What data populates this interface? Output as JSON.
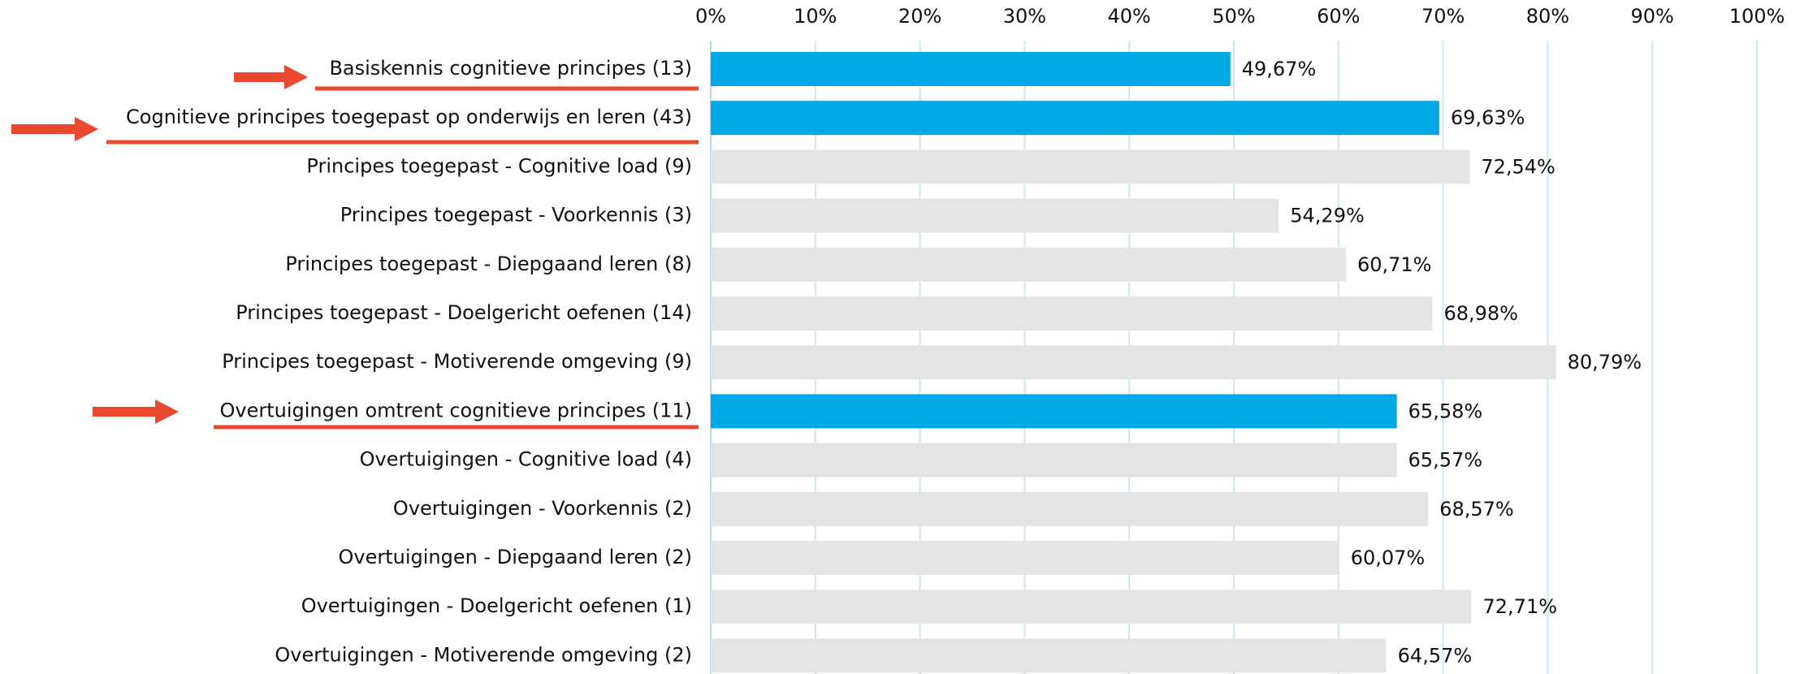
{
  "chart_data": {
    "type": "barh",
    "categories": [
      "Basiskennis cognitieve principes (13)",
      "Cognitieve principes toegepast op onderwijs en leren (43)",
      "Principes toegepast - Cognitive load (9)",
      "Principes toegepast - Voorkennis (3)",
      "Principes toegepast - Diepgaand leren (8)",
      "Principes toegepast - Doelgericht oefenen (14)",
      "Principes toegepast - Motiverende omgeving (9)",
      "Overtuigingen omtrent cognitieve principes (11)",
      "Overtuigingen - Cognitive load (4)",
      "Overtuigingen - Voorkennis (2)",
      "Overtuigingen - Diepgaand leren (2)",
      "Overtuigingen - Doelgericht oefenen (1)",
      "Overtuigingen - Motiverende omgeving (2)"
    ],
    "values": [
      49.67,
      69.63,
      72.54,
      54.29,
      60.71,
      68.98,
      80.79,
      65.58,
      65.57,
      68.57,
      60.07,
      72.71,
      64.57
    ],
    "value_labels": [
      "49,67%",
      "69,63%",
      "72,54%",
      "54,29%",
      "60,71%",
      "68,98%",
      "80,79%",
      "65,58%",
      "65,57%",
      "68,57%",
      "60,07%",
      "72,71%",
      "64,57%"
    ],
    "colors": [
      "#00a9e6",
      "#00a9e6",
      "#e4e4e4",
      "#e4e4e4",
      "#e4e4e4",
      "#e4e4e4",
      "#e4e4e4",
      "#00a9e6",
      "#e4e4e4",
      "#e4e4e4",
      "#e4e4e4",
      "#e4e4e4",
      "#e4e4e4"
    ],
    "xlim": [
      0,
      100
    ],
    "xticks": [
      {
        "value": 0,
        "label": "0%"
      },
      {
        "value": 10,
        "label": "10%"
      },
      {
        "value": 20,
        "label": "20%"
      },
      {
        "value": 30,
        "label": "30%"
      },
      {
        "value": 40,
        "label": "40%"
      },
      {
        "value": 50,
        "label": "50%"
      },
      {
        "value": 60,
        "label": "60%"
      },
      {
        "value": 70,
        "label": "70%"
      },
      {
        "value": 80,
        "label": "80%"
      },
      {
        "value": 90,
        "label": "90%"
      },
      {
        "value": 100,
        "label": "100%"
      }
    ],
    "grid": true
  }
}
